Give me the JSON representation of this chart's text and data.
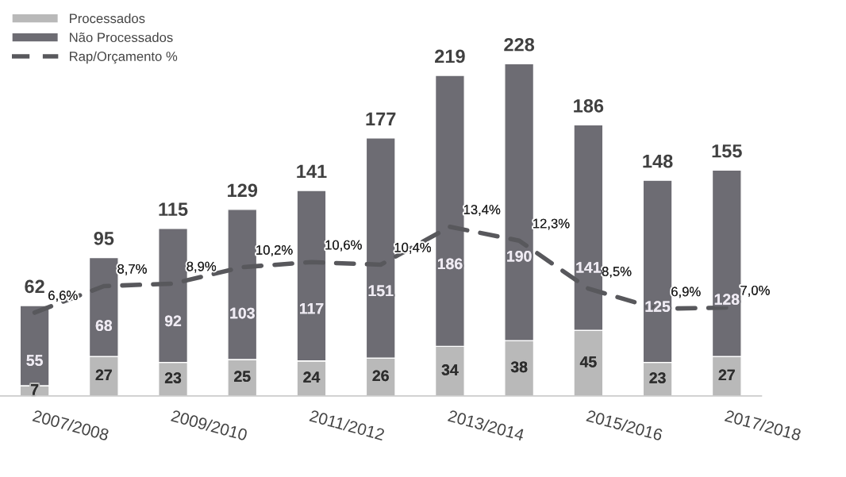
{
  "chart_data": {
    "type": "bar",
    "stacked": true,
    "categories": [
      "2007/2008",
      null,
      "2009/2010",
      null,
      "2011/2012",
      null,
      "2013/2014",
      null,
      "2015/2016",
      null,
      "2017/2018"
    ],
    "tick_labels": "x",
    "legend": "top left",
    "grid": false,
    "data_labels": true,
    "totals": [
      "62",
      "95",
      "115",
      "129",
      "141",
      "177",
      "219",
      "228",
      "186",
      "148",
      "155"
    ],
    "series": [
      {
        "name": "Processados",
        "color": "#b9b9b9",
        "values": [
          7,
          27,
          23,
          25,
          24,
          26,
          34,
          38,
          45,
          23,
          27
        ]
      },
      {
        "name": "Não Processados",
        "color": "#6d6c73",
        "values": [
          55,
          68,
          92,
          103,
          117,
          151,
          186,
          190,
          141,
          125,
          128
        ]
      },
      {
        "name": "Rap/Orçamento %",
        "type": "line",
        "axis": "y2",
        "color": "#58585c",
        "line_style": "dashed",
        "marker": "none",
        "values": [
          6.6,
          8.7,
          8.9,
          10.2,
          10.6,
          10.4,
          13.4,
          12.3,
          8.5,
          6.9,
          7.0
        ],
        "value_labels": [
          "6,6%",
          "8,7%",
          "8,9%",
          "10,2%",
          "10,6%",
          "10,4%",
          "13,4%",
          "12,3%",
          "8,5%",
          "6,9%",
          "7,0%"
        ]
      }
    ]
  }
}
